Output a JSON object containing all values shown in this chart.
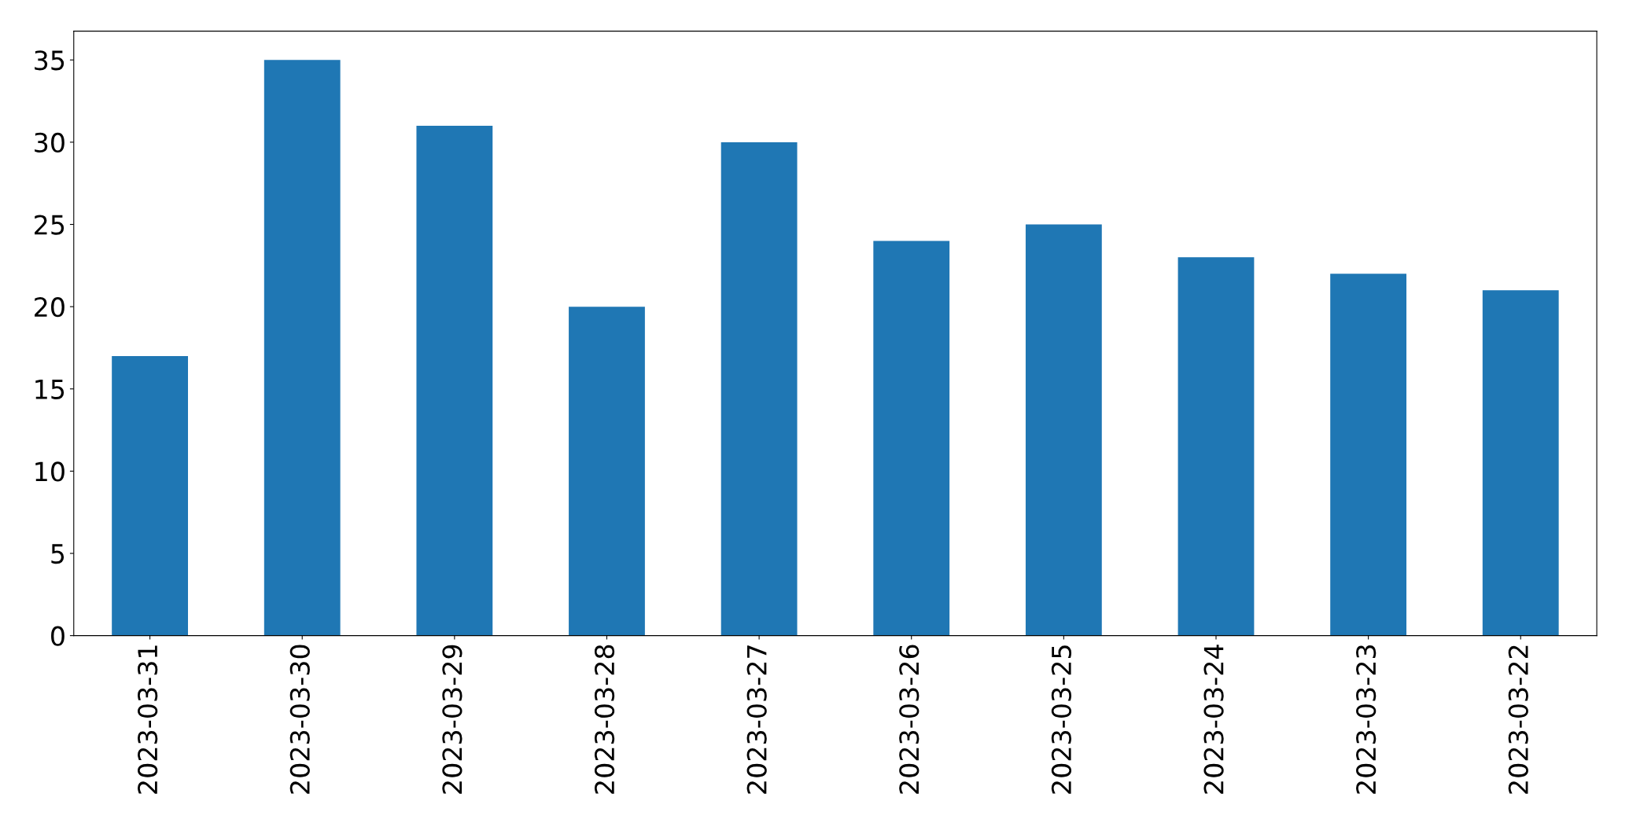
{
  "chart_data": {
    "type": "bar",
    "categories": [
      "2023-03-31",
      "2023-03-30",
      "2023-03-29",
      "2023-03-28",
      "2023-03-27",
      "2023-03-26",
      "2023-03-25",
      "2023-03-24",
      "2023-03-23",
      "2023-03-22"
    ],
    "values": [
      17,
      35,
      31,
      20,
      30,
      24,
      25,
      23,
      22,
      21
    ],
    "color": "#1f77b4",
    "ylim": [
      0,
      36.75
    ],
    "yticks": [
      0,
      5,
      10,
      15,
      20,
      25,
      30,
      35
    ],
    "grid": false
  }
}
